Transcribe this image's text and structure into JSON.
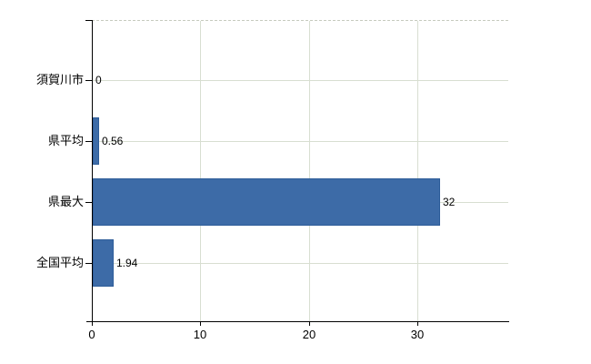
{
  "chart_data": {
    "type": "bar",
    "orientation": "horizontal",
    "title": "",
    "categories": [
      "須賀川市",
      "県平均",
      "県最大",
      "全国平均"
    ],
    "values": [
      0,
      0.56,
      32,
      1.94
    ],
    "value_labels": [
      "0",
      "0.56",
      "32",
      "1.94"
    ],
    "x_tick_labels": [
      "0",
      "10",
      "20",
      "30"
    ],
    "x_tick_values": [
      0,
      10,
      20,
      30
    ],
    "xlim": [
      0,
      38.4
    ],
    "grid": true,
    "legend_position": "none",
    "colors": {
      "bar_fill": "#3d6ba7",
      "bar_border": "#2e5d99",
      "gridline": "#d8ded1",
      "top_border_dashed": "#c6cabe",
      "axis": "#000000",
      "text": "#000000",
      "background": "#ffffff"
    }
  }
}
